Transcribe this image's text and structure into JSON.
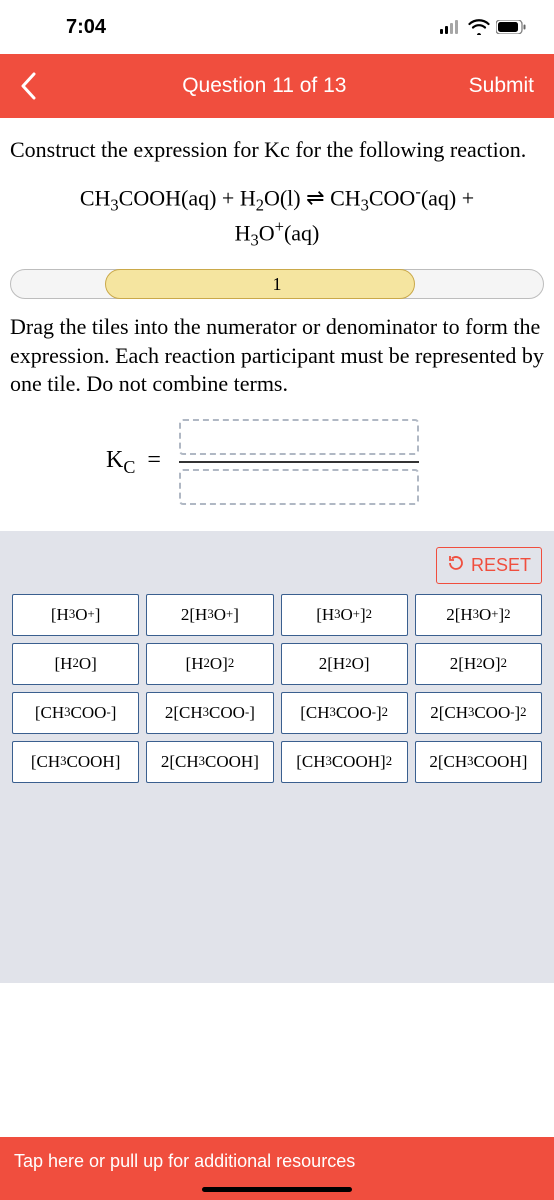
{
  "status": {
    "time": "7:04"
  },
  "header": {
    "title": "Question 11 of 13",
    "submit": "Submit"
  },
  "question": {
    "prompt": "Construct the expression for Kc for the following reaction.",
    "instructions": "Drag the tiles into the numerator or denominator to form the expression. Each reaction participant must be represented by one tile. Do not combine terms."
  },
  "progress": {
    "label": "1"
  },
  "kc": {
    "label_main": "K",
    "label_sub": "C",
    "equals": "="
  },
  "reset": {
    "label": "RESET"
  },
  "tiles": [
    {
      "html": "[H<span class='sub'>3</span>O<span class='sup'>+</span>]"
    },
    {
      "html": "2[H<span class='sub'>3</span>O<span class='sup'>+</span>]"
    },
    {
      "html": "[H<span class='sub'>3</span>O<span class='sup'>+</span>]<span class='sup'>2</span>"
    },
    {
      "html": "2[H<span class='sub'>3</span>O<span class='sup'>+</span>]<span class='sup'>2</span>"
    },
    {
      "html": "[H<span class='sub'>2</span>O]"
    },
    {
      "html": "[H<span class='sub'>2</span>O]<span class='sup'>2</span>"
    },
    {
      "html": "2[H<span class='sub'>2</span>O]"
    },
    {
      "html": "2[H<span class='sub'>2</span>O]<span class='sup'>2</span>"
    },
    {
      "html": "[CH<span class='sub'>3</span>COO<span class='sup'>-</span>]"
    },
    {
      "html": "2[CH<span class='sub'>3</span>COO<span class='sup'>-</span>]"
    },
    {
      "html": "[CH<span class='sub'>3</span>COO<span class='sup'>-</span>]<span class='sup'>2</span>"
    },
    {
      "html": "2[CH<span class='sub'>3</span>COO<span class='sup'>-</span>]<span class='sup'>2</span>"
    },
    {
      "html": "[CH<span class='sub'>3</span>COOH]"
    },
    {
      "html": "2[CH<span class='sub'>3</span>COOH]"
    },
    {
      "html": "[CH<span class='sub'>3</span>COOH]<span class='sup'>2</span>"
    },
    {
      "html": "2[CH<span class='sub'>3</span>COOH]"
    }
  ],
  "footer": {
    "text": "Tap here or pull up for additional resources"
  },
  "colors": {
    "accent": "#f04e3e",
    "tile_border": "#3a5f8f",
    "panel_bg": "#e1e3ea",
    "progress_fill": "#f5e5a0",
    "progress_border": "#caa94a"
  }
}
